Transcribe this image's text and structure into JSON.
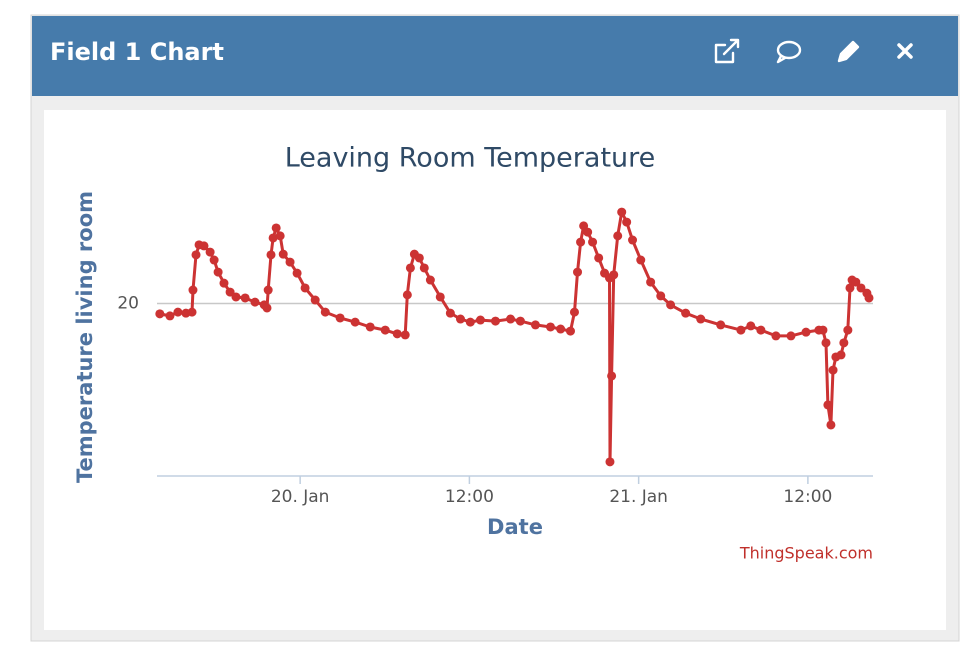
{
  "header": {
    "title": "Field 1 Chart"
  },
  "chart_data": {
    "type": "line",
    "title": "Leaving Room Temperature",
    "x_label": "Date",
    "y_label": "Temperature living room",
    "credits": "ThingSpeak.com",
    "color": "#cc3333",
    "grid": true,
    "ylim": [
      15,
      23
    ],
    "yticks": [
      20
    ],
    "xlim": [
      "01-19 13:51",
      "01-21 16:37"
    ],
    "xticks": [
      {
        "value": "01-20 00:00",
        "label": "20. Jan"
      },
      {
        "value": "01-20 12:00",
        "label": "12:00"
      },
      {
        "value": "01-21 00:00",
        "label": "21. Jan"
      },
      {
        "value": "01-21 12:00",
        "label": "12:00"
      }
    ],
    "x": [
      "01-19 14:03",
      "01-19 14:46",
      "01-19 15:20",
      "01-19 15:54",
      "01-19 16:20",
      "01-19 16:24",
      "01-19 16:37",
      "01-19 16:50",
      "01-19 17:11",
      "01-19 17:37",
      "01-19 17:54",
      "01-19 18:11",
      "01-19 18:36",
      "01-19 19:02",
      "01-19 19:27",
      "01-19 20:06",
      "01-19 20:48",
      "01-19 21:27",
      "01-19 21:39",
      "01-19 21:44",
      "01-19 21:56",
      "01-19 22:05",
      "01-19 22:18",
      "01-19 22:35",
      "01-19 22:48",
      "01-19 23:17",
      "01-19 23:47",
      "01-20 00:21",
      "01-20 01:04",
      "01-20 01:47",
      "01-20 02:50",
      "01-20 03:54",
      "01-20 04:58",
      "01-20 06:02",
      "01-20 06:53",
      "01-20 07:27",
      "01-20 07:36",
      "01-20 07:49",
      "01-20 08:06",
      "01-20 08:27",
      "01-20 08:48",
      "01-20 09:14",
      "01-20 09:56",
      "01-20 10:39",
      "01-20 11:22",
      "01-20 12:04",
      "01-20 12:47",
      "01-20 13:51",
      "01-20 14:55",
      "01-20 15:37",
      "01-20 16:41",
      "01-20 17:45",
      "01-20 18:28",
      "01-20 19:10",
      "01-20 19:27",
      "01-20 19:40",
      "01-20 19:53",
      "01-20 20:06",
      "01-20 20:23",
      "01-20 20:44",
      "01-20 21:10",
      "01-20 21:35",
      "01-20 21:56",
      "01-20 21:58",
      "01-20 22:05",
      "01-20 22:14",
      "01-20 22:31",
      "01-20 22:48",
      "01-20 23:09",
      "01-20 23:34",
      "01-21 00:09",
      "01-21 00:51",
      "01-21 01:34",
      "01-21 02:16",
      "01-21 03:20",
      "01-21 04:24",
      "01-21 05:49",
      "01-21 07:15",
      "01-21 07:57",
      "01-21 08:40",
      "01-21 09:44",
      "01-21 10:48",
      "01-21 11:52",
      "01-21 12:47",
      "01-21 13:04",
      "01-21 13:17",
      "01-21 13:25",
      "01-21 13:38",
      "01-21 13:47",
      "01-21 13:59",
      "01-21 14:21",
      "01-21 14:33",
      "01-21 14:50",
      "01-21 14:59",
      "01-21 15:08",
      "01-21 15:24",
      "01-21 15:46",
      "01-21 16:11",
      "01-21 16:20"
    ],
    "values": [
      19.7,
      19.64,
      19.75,
      19.72,
      19.75,
      20.39,
      21.41,
      21.7,
      21.67,
      21.49,
      21.26,
      20.91,
      20.59,
      20.33,
      20.19,
      20.16,
      20.04,
      19.96,
      19.87,
      20.39,
      21.41,
      21.9,
      22.19,
      21.96,
      21.43,
      21.2,
      20.88,
      20.45,
      20.1,
      19.75,
      19.58,
      19.46,
      19.32,
      19.23,
      19.12,
      19.09,
      20.25,
      21.03,
      21.43,
      21.32,
      21.03,
      20.68,
      20.19,
      19.72,
      19.55,
      19.46,
      19.52,
      19.49,
      19.55,
      19.49,
      19.38,
      19.32,
      19.26,
      19.2,
      19.75,
      20.91,
      21.78,
      22.25,
      22.07,
      21.78,
      21.32,
      20.88,
      20.74,
      15.41,
      17.9,
      20.83,
      21.96,
      22.65,
      22.36,
      21.84,
      21.26,
      20.62,
      20.22,
      19.96,
      19.72,
      19.55,
      19.38,
      19.23,
      19.35,
      19.23,
      19.06,
      19.06,
      19.17,
      19.23,
      19.23,
      18.86,
      17.06,
      16.48,
      18.07,
      18.45,
      18.51,
      18.86,
      19.23,
      20.45,
      20.68,
      20.62,
      20.45,
      20.3,
      20.16
    ]
  }
}
